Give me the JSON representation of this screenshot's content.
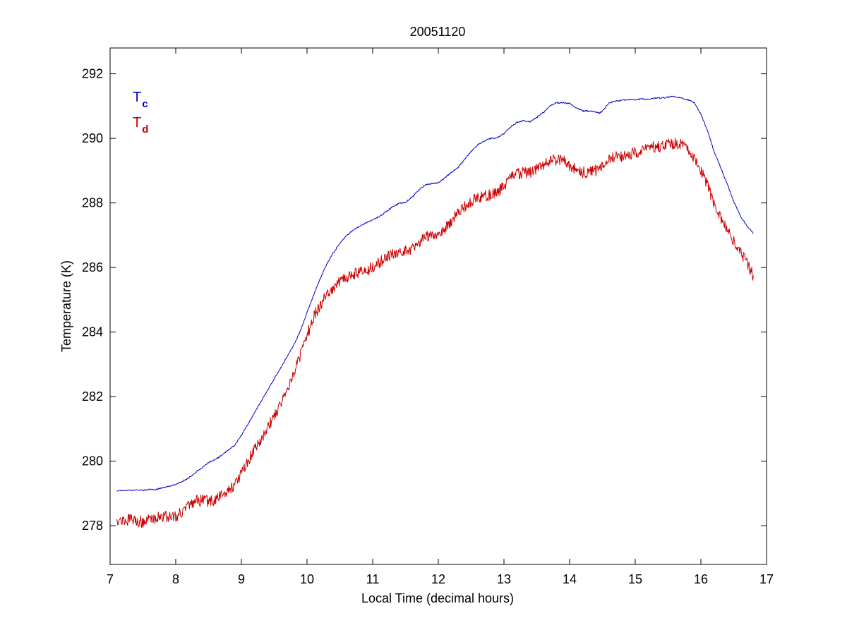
{
  "chart_data": {
    "type": "line",
    "title": "20051120",
    "xlabel": "Local Time (decimal hours)",
    "ylabel": "Temperature (K)",
    "xlim": [
      7,
      17
    ],
    "ylim": [
      276.8,
      292.8
    ],
    "xticks": [
      7,
      8,
      9,
      10,
      11,
      12,
      13,
      14,
      15,
      16,
      17
    ],
    "yticks": [
      278,
      280,
      282,
      284,
      286,
      288,
      290,
      292
    ],
    "grid": false,
    "legend_position": "top-left",
    "legend": [
      {
        "main": "T",
        "sub": "c",
        "color": "#0000cc"
      },
      {
        "main": "T",
        "sub": "d",
        "color": "#cc0000"
      }
    ],
    "series": [
      {
        "color": "#0000cc",
        "noise": 0.02,
        "x": [
          7.1,
          7.3,
          7.5,
          7.6,
          7.7,
          7.8,
          7.9,
          8.0,
          8.1,
          8.2,
          8.3,
          8.4,
          8.5,
          8.6,
          8.7,
          8.8,
          8.9,
          9.0,
          9.1,
          9.2,
          9.3,
          9.4,
          9.5,
          9.6,
          9.7,
          9.8,
          9.9,
          10.0,
          10.1,
          10.2,
          10.3,
          10.4,
          10.5,
          10.6,
          10.7,
          10.8,
          10.9,
          11.0,
          11.1,
          11.2,
          11.3,
          11.4,
          11.5,
          11.6,
          11.7,
          11.8,
          11.9,
          12.0,
          12.1,
          12.2,
          12.3,
          12.4,
          12.5,
          12.6,
          12.7,
          12.8,
          12.9,
          13.0,
          13.1,
          13.2,
          13.3,
          13.4,
          13.5,
          13.6,
          13.7,
          13.8,
          13.9,
          14.0,
          14.1,
          14.2,
          14.3,
          14.4,
          14.45,
          14.5,
          14.6,
          14.7,
          14.8,
          14.9,
          15.0,
          15.1,
          15.2,
          15.3,
          15.4,
          15.5,
          15.6,
          15.7,
          15.8,
          15.9,
          16.0,
          16.1,
          16.2,
          16.3,
          16.4,
          16.5,
          16.6,
          16.7,
          16.8
        ],
        "y": [
          279.08,
          279.1,
          279.1,
          279.12,
          279.12,
          279.18,
          279.22,
          279.28,
          279.38,
          279.48,
          279.65,
          279.8,
          279.95,
          280.05,
          280.18,
          280.35,
          280.5,
          280.8,
          281.15,
          281.5,
          281.85,
          282.2,
          282.55,
          282.9,
          283.25,
          283.6,
          284.05,
          284.6,
          285.15,
          285.65,
          286.1,
          286.45,
          286.75,
          286.98,
          287.15,
          287.28,
          287.38,
          287.48,
          287.58,
          287.72,
          287.88,
          287.98,
          288.02,
          288.18,
          288.4,
          288.55,
          288.6,
          288.62,
          288.78,
          288.95,
          289.1,
          289.35,
          289.6,
          289.8,
          289.92,
          290.0,
          290.02,
          290.15,
          290.35,
          290.5,
          290.55,
          290.52,
          290.65,
          290.8,
          291.0,
          291.1,
          291.1,
          291.08,
          290.95,
          290.85,
          290.85,
          290.82,
          290.78,
          290.85,
          291.1,
          291.15,
          291.18,
          291.2,
          291.2,
          291.22,
          291.22,
          291.25,
          291.25,
          291.28,
          291.3,
          291.25,
          291.2,
          291.1,
          290.75,
          290.25,
          289.6,
          289.1,
          288.6,
          288.05,
          287.6,
          287.3,
          287.05
        ]
      },
      {
        "color": "#cc0000",
        "noise": 0.18,
        "x": [
          7.1,
          7.2,
          7.3,
          7.4,
          7.5,
          7.6,
          7.7,
          7.8,
          7.9,
          8.0,
          8.1,
          8.2,
          8.3,
          8.4,
          8.5,
          8.6,
          8.7,
          8.8,
          8.9,
          9.0,
          9.1,
          9.2,
          9.3,
          9.4,
          9.5,
          9.6,
          9.7,
          9.8,
          9.9,
          10.0,
          10.1,
          10.2,
          10.3,
          10.4,
          10.5,
          10.6,
          10.7,
          10.8,
          10.9,
          11.0,
          11.1,
          11.2,
          11.3,
          11.4,
          11.5,
          11.6,
          11.7,
          11.8,
          11.9,
          12.0,
          12.1,
          12.2,
          12.3,
          12.4,
          12.5,
          12.6,
          12.7,
          12.8,
          12.9,
          13.0,
          13.1,
          13.2,
          13.3,
          13.4,
          13.5,
          13.6,
          13.7,
          13.8,
          13.9,
          14.0,
          14.1,
          14.2,
          14.3,
          14.4,
          14.5,
          14.6,
          14.7,
          14.8,
          14.9,
          15.0,
          15.1,
          15.2,
          15.3,
          15.4,
          15.5,
          15.6,
          15.7,
          15.8,
          15.9,
          16.0,
          16.1,
          16.2,
          16.3,
          16.4,
          16.5,
          16.6,
          16.7,
          16.8
        ],
        "y": [
          278.2,
          278.15,
          278.2,
          278.15,
          278.12,
          278.2,
          278.25,
          278.3,
          278.28,
          278.3,
          278.45,
          278.6,
          278.75,
          278.8,
          278.75,
          278.8,
          278.95,
          279.1,
          279.3,
          279.6,
          280.0,
          280.35,
          280.7,
          281.05,
          281.4,
          281.8,
          282.25,
          282.75,
          283.3,
          283.9,
          284.45,
          284.85,
          285.15,
          285.35,
          285.55,
          285.7,
          285.8,
          285.85,
          285.9,
          286.0,
          286.15,
          286.3,
          286.4,
          286.45,
          286.55,
          286.6,
          286.75,
          286.95,
          287.05,
          287.05,
          287.2,
          287.45,
          287.7,
          287.9,
          288.05,
          288.15,
          288.2,
          288.25,
          288.35,
          288.5,
          288.75,
          288.9,
          288.95,
          288.95,
          289.05,
          289.2,
          289.3,
          289.35,
          289.3,
          289.15,
          289.05,
          288.95,
          288.95,
          289.0,
          289.15,
          289.35,
          289.45,
          289.45,
          289.5,
          289.55,
          289.6,
          289.7,
          289.75,
          289.75,
          289.8,
          289.85,
          289.8,
          289.65,
          289.4,
          289.05,
          288.55,
          288.0,
          287.55,
          287.15,
          286.8,
          286.5,
          286.15,
          285.75
        ]
      }
    ]
  }
}
